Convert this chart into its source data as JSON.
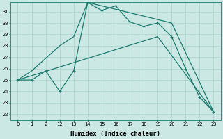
{
  "xlabel": "Humidex (Indice chaleur)",
  "bg_color": "#cce8e4",
  "line_color": "#1a7a6e",
  "grid_color": "#aad4ce",
  "yticks": [
    22,
    23,
    24,
    25,
    26,
    27,
    28,
    29,
    30,
    31
  ],
  "xtick_labels": [
    "0",
    "1",
    "2",
    "12",
    "13",
    "14",
    "15",
    "16",
    "17",
    "18",
    "19",
    "20",
    "21",
    "22",
    "23"
  ],
  "line1_y": [
    25.0,
    25.0,
    25.8,
    24.0,
    25.8,
    31.8,
    31.1,
    31.5,
    30.1,
    29.7,
    30.0,
    28.8,
    26.0,
    23.5,
    22.2
  ],
  "line2_y": [
    25.0,
    25.8,
    null,
    28.0,
    28.8,
    31.8,
    null,
    null,
    null,
    null,
    null,
    30.0,
    null,
    null,
    22.2
  ],
  "line3_y": [
    25.0,
    null,
    null,
    null,
    null,
    null,
    null,
    null,
    null,
    null,
    28.8,
    null,
    null,
    null,
    22.2
  ]
}
